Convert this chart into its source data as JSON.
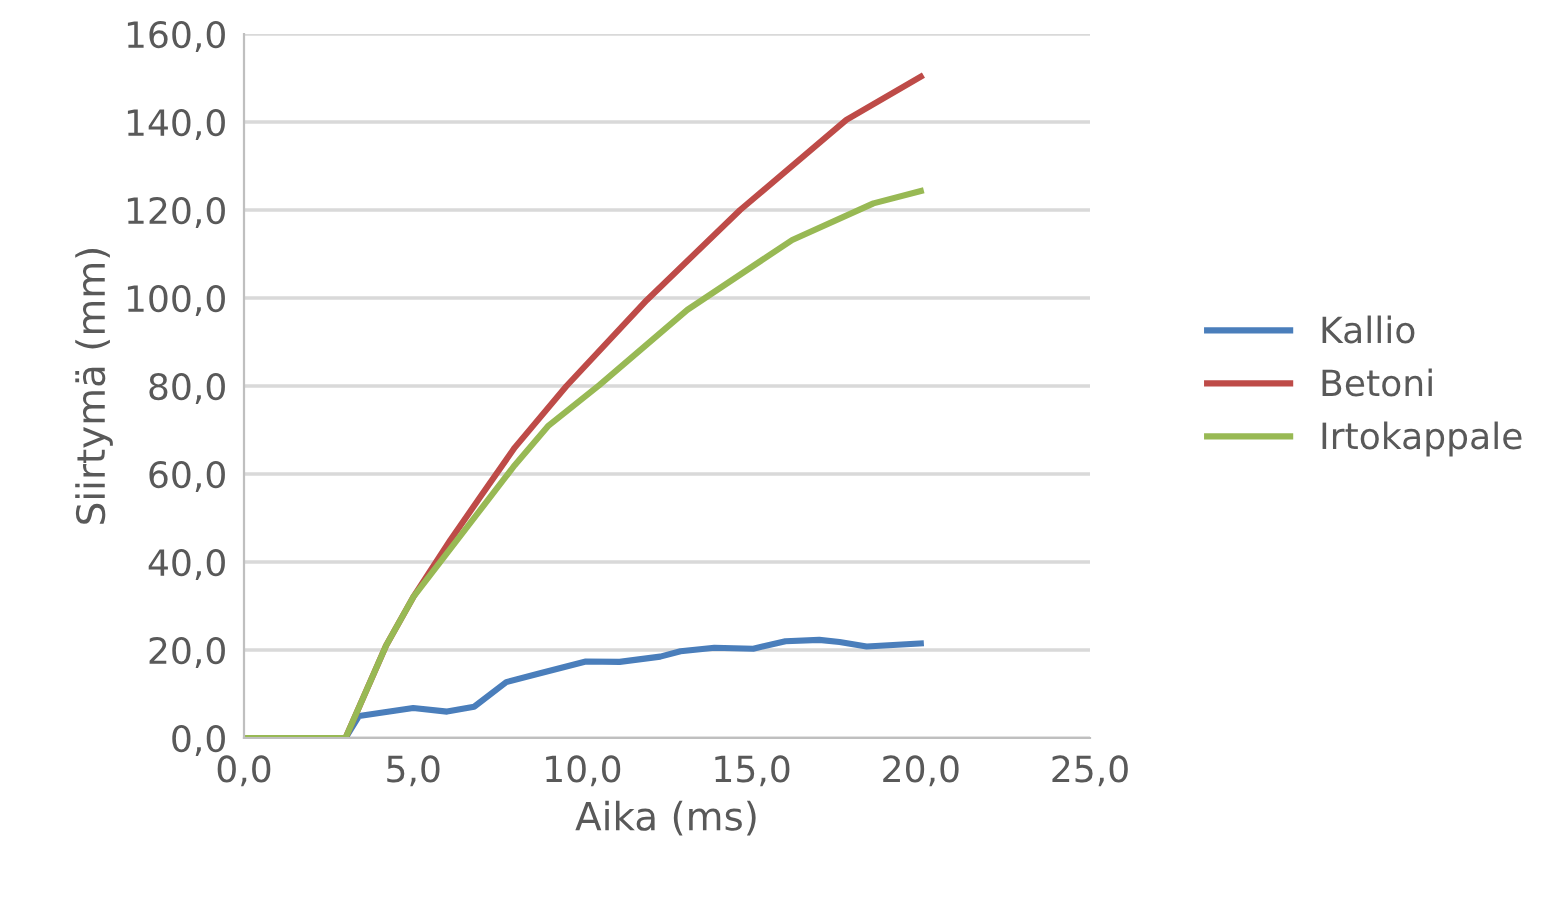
{
  "chart_data": {
    "type": "line",
    "xlabel": "Aika (ms)",
    "ylabel": "Siirtymä (mm)",
    "xlim": [
      0,
      25
    ],
    "xticks": [
      {
        "value": 0,
        "label": "0,0"
      },
      {
        "value": 5,
        "label": "5,0"
      },
      {
        "value": 10,
        "label": "10,0"
      },
      {
        "value": 15,
        "label": "15,0"
      },
      {
        "value": 20,
        "label": "20,0"
      },
      {
        "value": 25,
        "label": "25,0"
      }
    ],
    "ylim": [
      0,
      160
    ],
    "yticks": [
      {
        "value": 0,
        "label": "0,0"
      },
      {
        "value": 20,
        "label": "20,0"
      },
      {
        "value": 40,
        "label": "40,0"
      },
      {
        "value": 60,
        "label": "60,0"
      },
      {
        "value": 80,
        "label": "80,0"
      },
      {
        "value": 100,
        "label": "100,0"
      },
      {
        "value": 120,
        "label": "120,0"
      },
      {
        "value": 140,
        "label": "140,0"
      },
      {
        "value": 160,
        "label": "160,0"
      }
    ],
    "grid": "y",
    "legend": "right",
    "marker": "none",
    "line_style": "solid",
    "series": [
      {
        "name": "Kallio",
        "color": "#4a7ebb",
        "x": [
          0,
          3.0,
          3.4,
          5.0,
          6.0,
          6.8,
          7.75,
          8.75,
          10.1,
          11.1,
          12.3,
          12.9,
          13.9,
          15.05,
          16.0,
          17.0,
          17.6,
          18.4,
          20.0
        ],
        "values": [
          0,
          0,
          5.0,
          6.8,
          6.0,
          7.1,
          12.7,
          14.7,
          17.4,
          17.3,
          18.5,
          19.7,
          20.5,
          20.3,
          22.0,
          22.3,
          21.8,
          20.8,
          21.5
        ]
      },
      {
        "name": "Betoni",
        "color": "#be4b48",
        "x": [
          0,
          3.0,
          4.2,
          5.0,
          6.1,
          7.0,
          8.0,
          9.53,
          11.9,
          14.66,
          17.8,
          20.0
        ],
        "values": [
          0,
          0,
          21,
          32,
          45,
          55,
          66,
          80,
          99.5,
          120,
          140.5,
          150.3
        ]
      },
      {
        "name": "Irtokappale",
        "color": "#98b954",
        "x": [
          0,
          3.0,
          4.2,
          5.0,
          6.0,
          7.0,
          8.0,
          9.0,
          10.5,
          13.1,
          16.2,
          18.6,
          20.0
        ],
        "values": [
          0,
          0,
          21,
          32,
          42,
          52,
          62,
          71,
          80.2,
          97.3,
          113.2,
          121.5,
          124.3
        ]
      }
    ]
  }
}
